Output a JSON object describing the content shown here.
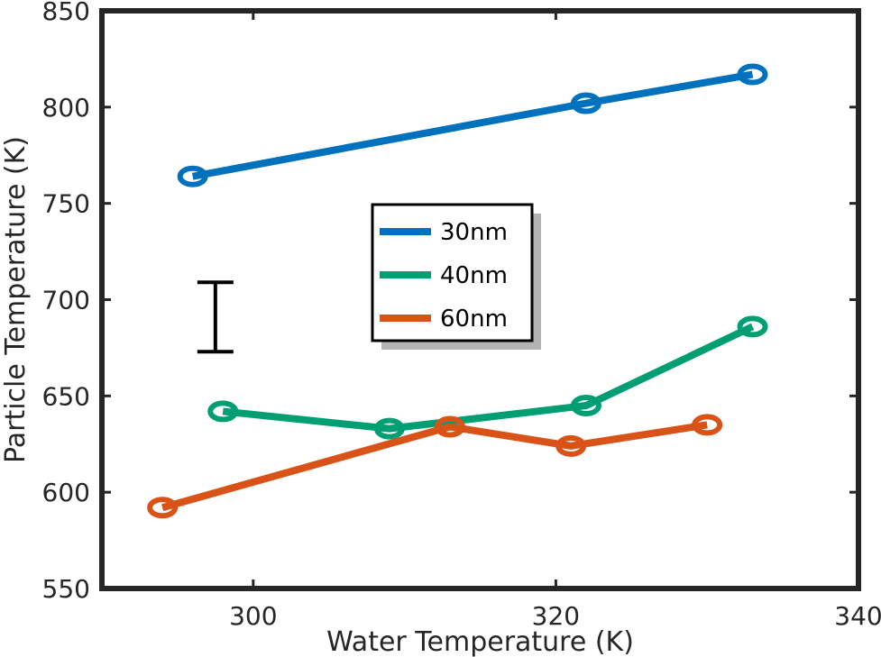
{
  "chart_data": {
    "type": "line",
    "title": "",
    "xlabel": "Water Temperature (K)",
    "ylabel": "Particle Temperature (K)",
    "xlim": [
      290,
      340
    ],
    "ylim": [
      550,
      850
    ],
    "xticks": [
      300,
      320,
      340
    ],
    "yticks": [
      550,
      600,
      650,
      700,
      750,
      800,
      850
    ],
    "grid": false,
    "legend": {
      "placement": "center",
      "entries": [
        "30nm",
        "40nm",
        "60nm"
      ]
    },
    "series": [
      {
        "name": "30nm",
        "color": "#0072BD",
        "x": [
          296,
          322,
          333
        ],
        "y": [
          764,
          802,
          817
        ]
      },
      {
        "name": "40nm",
        "color": "#009E73",
        "x": [
          298,
          309,
          322,
          333
        ],
        "y": [
          642,
          633,
          645,
          686
        ]
      },
      {
        "name": "60nm",
        "color": "#D95319",
        "x": [
          294,
          313,
          321,
          330
        ],
        "y": [
          592,
          634,
          624,
          635
        ]
      }
    ],
    "error_bar": {
      "x": 297.5,
      "y_low": 673,
      "y_high": 709,
      "color": "#000000"
    }
  }
}
